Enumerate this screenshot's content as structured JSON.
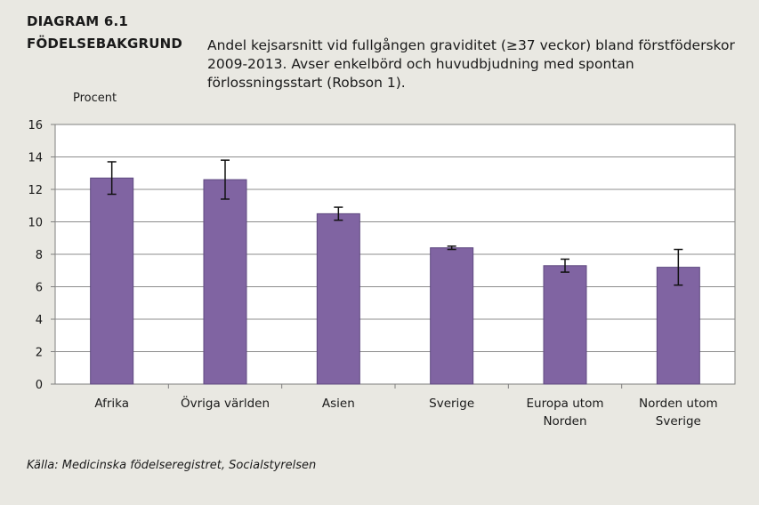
{
  "header": {
    "diagram_number": "DIAGRAM 6.1",
    "diagram_topic": "FÖDELSEBAKGRUND"
  },
  "source": "Källa: Medicinska födelseregistret, Socialstyrelsen",
  "colors": {
    "bar": "#8064a2",
    "bar_stroke": "#5f4a80",
    "plot_bg": "#ffffff"
  },
  "chart_data": {
    "type": "bar",
    "title": "Andel kejsarsnitt vid fullgången graviditet (≥37 veckor) bland förstföderskor 2009-2013. Avser enkelbörd och huvudbjudning med spontan förlossningsstart (Robson 1).",
    "ylabel": "Procent",
    "xlabel": "",
    "ylim": [
      0,
      16
    ],
    "yticks": [
      0,
      2,
      4,
      6,
      8,
      10,
      12,
      14,
      16
    ],
    "grid": true,
    "categories": [
      [
        "Afrika"
      ],
      [
        "Övriga världen"
      ],
      [
        "Asien"
      ],
      [
        "Sverige"
      ],
      [
        "Europa utom",
        "Norden"
      ],
      [
        "Norden utom",
        "Sverige"
      ]
    ],
    "values": [
      12.7,
      12.6,
      10.5,
      8.4,
      7.3,
      7.2
    ],
    "error_low": [
      11.7,
      11.4,
      10.1,
      8.3,
      6.9,
      6.1
    ],
    "error_high": [
      13.7,
      13.8,
      10.9,
      8.5,
      7.7,
      8.3
    ]
  }
}
